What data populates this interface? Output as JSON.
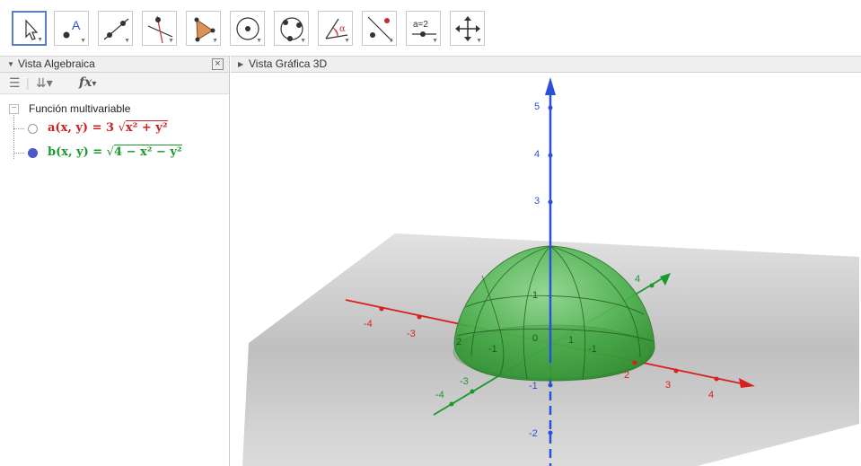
{
  "toolbar": {
    "tools": [
      {
        "icon": "move-arrow-icon",
        "label": ""
      },
      {
        "icon": "point-icon",
        "label": "A"
      },
      {
        "icon": "line-icon",
        "label": ""
      },
      {
        "icon": "perpendicular-line-icon",
        "label": ""
      },
      {
        "icon": "polygon-icon",
        "label": ""
      },
      {
        "icon": "circle-center-point-icon",
        "label": ""
      },
      {
        "icon": "circle-three-points-icon",
        "label": ""
      },
      {
        "icon": "angle-icon",
        "label": "α"
      },
      {
        "icon": "reflect-icon",
        "label": ""
      },
      {
        "icon": "slider-icon",
        "label": "a=2"
      },
      {
        "icon": "move-view-icon",
        "label": ""
      }
    ]
  },
  "algebra": {
    "title": "Vista Algebraica",
    "close_label": "☒",
    "fx_label": "fx",
    "group": "Función multivariable",
    "functions": [
      {
        "lhs": "a(x, y) = 3",
        "radicand": "x² + y²",
        "color": "#d02020",
        "visible": false
      },
      {
        "lhs": "b(x, y) =",
        "radicand": "4 − x² − y²",
        "color": "#1a9a2a",
        "visible": true
      }
    ]
  },
  "graphics": {
    "title": "Vista Gráfica 3D",
    "z_ticks": [
      "5",
      "4",
      "3",
      "-1",
      "-2"
    ],
    "x_ticks": [
      "-4",
      "-3",
      "2",
      "3",
      "4"
    ],
    "y_ticks": [
      "4",
      "-3",
      "-4"
    ],
    "inner_labels": [
      "1",
      "0",
      "1",
      "-1",
      "-1",
      "2"
    ],
    "colors": {
      "z_axis": "#2a4fd8",
      "x_axis": "#d82020",
      "y_axis": "#1a9a2a",
      "surface": "#3aa03a",
      "plane": "#9a9a9a"
    }
  }
}
